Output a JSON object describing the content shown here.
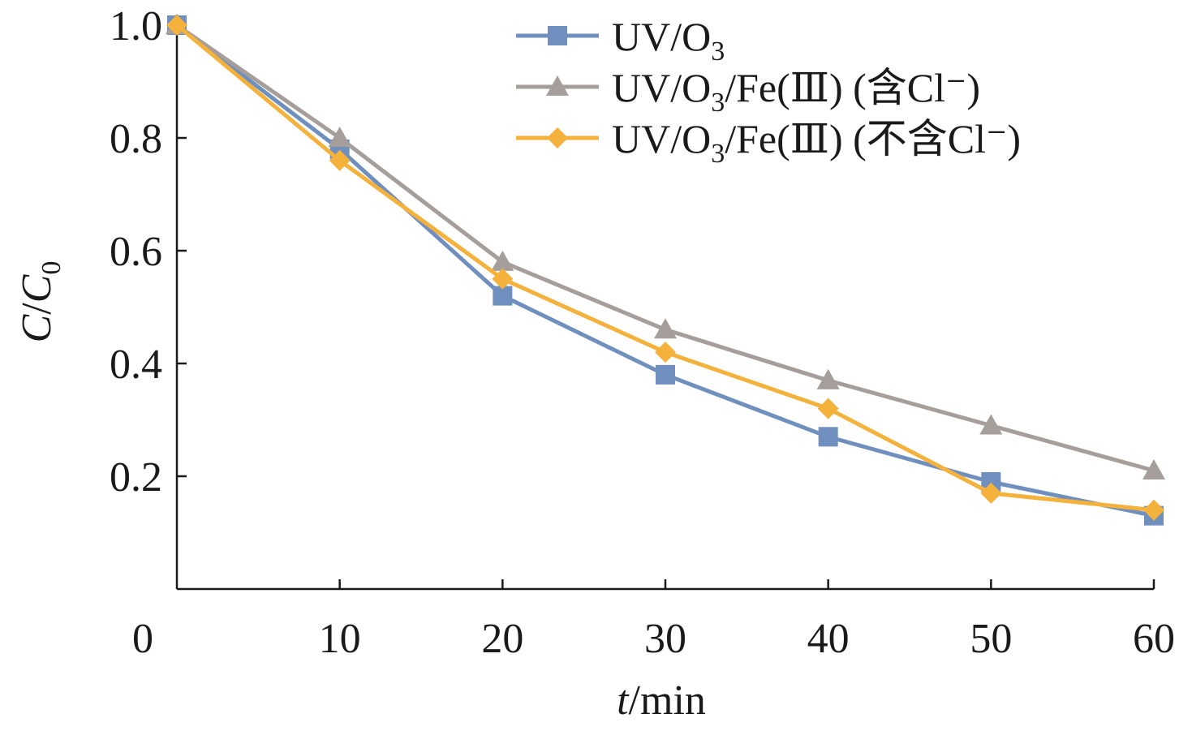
{
  "chart_data": {
    "type": "line",
    "xlabel_italic": "t",
    "xlabel_rest": "/min",
    "ylabel_c": "C",
    "ylabel_slash": "/",
    "ylabel_c0": "C",
    "ylabel_c0_sub": "0",
    "x": [
      0,
      10,
      20,
      30,
      40,
      50,
      60
    ],
    "xlim": [
      0,
      60
    ],
    "ylim": [
      0,
      1.0
    ],
    "x_ticks": [
      0,
      10,
      20,
      30,
      40,
      50,
      60
    ],
    "x_tick_labels": [
      "0",
      "10",
      "20",
      "30",
      "40",
      "50",
      "60"
    ],
    "y_ticks": [
      0.2,
      0.4,
      0.6,
      0.8,
      1.0
    ],
    "y_tick_labels": [
      "0.2",
      "0.4",
      "0.6",
      "0.8",
      "1.0"
    ],
    "legend_position": "top-right",
    "grid": false,
    "series": [
      {
        "name_parts": [
          "UV/O",
          "3",
          ""
        ],
        "marker": "square",
        "color": "#6f8fbf",
        "values": [
          1.0,
          0.78,
          0.52,
          0.38,
          0.27,
          0.19,
          0.13
        ]
      },
      {
        "name_parts": [
          "UV/O",
          "3",
          "/Fe(Ⅲ) (含Cl⁻)"
        ],
        "marker": "triangle",
        "color": "#a59e9b",
        "values": [
          1.0,
          0.8,
          0.58,
          0.46,
          0.37,
          0.29,
          0.21
        ]
      },
      {
        "name_parts": [
          "UV/O",
          "3",
          "/Fe(Ⅲ) (不含Cl⁻)"
        ],
        "marker": "diamond",
        "color": "#f4b13c",
        "values": [
          1.0,
          0.76,
          0.55,
          0.42,
          0.32,
          0.17,
          0.14
        ]
      }
    ]
  }
}
